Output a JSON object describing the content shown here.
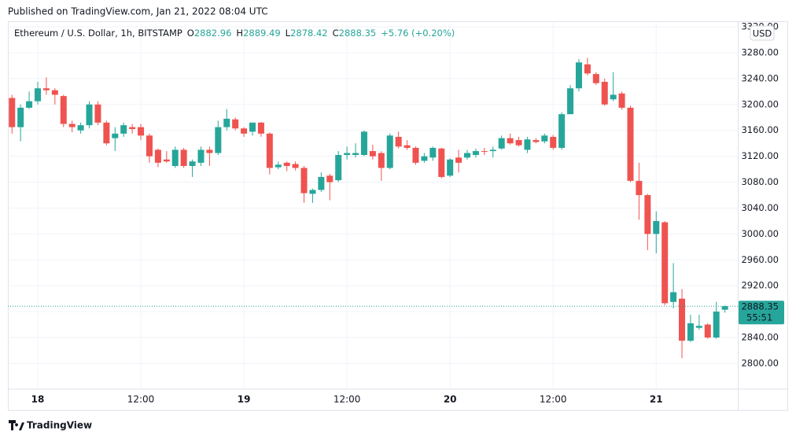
{
  "published": "Published on TradingView.com, Jan 21, 2022 08:04 UTC",
  "brand": "TradingView",
  "chart_data": {
    "type": "candlestick",
    "header": {
      "symbol": "Ethereum / U.S. Dollar, 1h, BITSTAMP",
      "open_label": "O",
      "high_label": "H",
      "low_label": "L",
      "close_label": "C",
      "change": "+5.76 (+0.20%)"
    },
    "currency": "USD",
    "countdown": "55:51",
    "up_color": "#26a69a",
    "down_color": "#ef5350",
    "grid": true,
    "x": [
      -3,
      -2,
      -1,
      0,
      1,
      2,
      3,
      4,
      5,
      6,
      7,
      8,
      9,
      10,
      11,
      12,
      13,
      14,
      15,
      16,
      17,
      18,
      19,
      20,
      21,
      22,
      23,
      24,
      25,
      26,
      27,
      28,
      29,
      30,
      31,
      32,
      33,
      34,
      35,
      36,
      37,
      38,
      39,
      40,
      41,
      42,
      43,
      44,
      45,
      46,
      47,
      48,
      49,
      50,
      51,
      52,
      53,
      54,
      55,
      56,
      57,
      58,
      59,
      60,
      61,
      62,
      63,
      64,
      65,
      66,
      67,
      68,
      69,
      70,
      71,
      72,
      73,
      74,
      75,
      76,
      77,
      78,
      79,
      80
    ],
    "open": [
      3210,
      3165,
      3195,
      3205,
      3225,
      3222,
      3213,
      3170,
      3160,
      3168,
      3200,
      3172,
      3148,
      3155,
      3165,
      3165,
      3152,
      3130,
      3115,
      3105,
      3130,
      3105,
      3110,
      3130,
      3125,
      3165,
      3177,
      3163,
      3158,
      3172,
      3155,
      3103,
      3110,
      3108,
      3102,
      3062,
      3068,
      3090,
      3083,
      3122,
      3122,
      3122,
      3128,
      3125,
      3102,
      3150,
      3137,
      3133,
      3113,
      3118,
      3132,
      3090,
      3118,
      3118,
      3122,
      3128,
      3128,
      3132,
      3148,
      3145,
      3130,
      3145,
      3143,
      3150,
      3133,
      3185,
      3225,
      3262,
      3247,
      3235,
      3208,
      3217,
      3195,
      3082,
      3060,
      3000,
      3018,
      2895,
      2900,
      2835,
      2855,
      2860,
      2840,
      2882.96
    ],
    "high": [
      3215,
      3200,
      3220,
      3235,
      3242,
      3225,
      3215,
      3175,
      3172,
      3205,
      3205,
      3175,
      3165,
      3172,
      3170,
      3170,
      3155,
      3132,
      3128,
      3135,
      3133,
      3115,
      3135,
      3135,
      3175,
      3193,
      3180,
      3165,
      3172,
      3173,
      3157,
      3112,
      3112,
      3112,
      3105,
      3070,
      3095,
      3093,
      3128,
      3135,
      3140,
      3160,
      3138,
      3128,
      3155,
      3158,
      3145,
      3135,
      3125,
      3135,
      3133,
      3117,
      3130,
      3130,
      3132,
      3133,
      3135,
      3152,
      3155,
      3150,
      3150,
      3148,
      3155,
      3153,
      3188,
      3230,
      3270,
      3272,
      3250,
      3240,
      3250,
      3220,
      3198,
      3110,
      3062,
      3035,
      3020,
      2955,
      2915,
      2875,
      2875,
      2862,
      2895,
      2889.49
    ],
    "low": [
      3155,
      3143,
      3193,
      3200,
      3215,
      3200,
      3165,
      3157,
      3155,
      3163,
      3168,
      3137,
      3128,
      3150,
      3155,
      3145,
      3110,
      3103,
      3110,
      3102,
      3102,
      3088,
      3105,
      3105,
      3122,
      3160,
      3160,
      3150,
      3152,
      3150,
      3092,
      3100,
      3097,
      3098,
      3048,
      3048,
      3065,
      3052,
      3080,
      3115,
      3118,
      3120,
      3115,
      3082,
      3100,
      3132,
      3130,
      3107,
      3110,
      3113,
      3086,
      3088,
      3095,
      3115,
      3118,
      3122,
      3118,
      3130,
      3138,
      3135,
      3125,
      3140,
      3140,
      3130,
      3130,
      3185,
      3220,
      3245,
      3230,
      3198,
      3205,
      3192,
      3080,
      3022,
      2975,
      2970,
      2890,
      2885,
      2808,
      2833,
      2852,
      2838,
      2838,
      2878.42
    ],
    "close": [
      3165,
      3195,
      3205,
      3225,
      3222,
      3215,
      3170,
      3165,
      3168,
      3200,
      3172,
      3140,
      3155,
      3168,
      3162,
      3152,
      3120,
      3110,
      3112,
      3130,
      3105,
      3112,
      3130,
      3125,
      3165,
      3178,
      3163,
      3155,
      3172,
      3155,
      3102,
      3107,
      3105,
      3102,
      3063,
      3068,
      3088,
      3080,
      3122,
      3125,
      3125,
      3158,
      3120,
      3102,
      3152,
      3135,
      3133,
      3110,
      3120,
      3133,
      3088,
      3115,
      3110,
      3125,
      3128,
      3127,
      3130,
      3148,
      3140,
      3137,
      3146,
      3142,
      3152,
      3133,
      3185,
      3225,
      3265,
      3248,
      3233,
      3200,
      3215,
      3195,
      3082,
      3060,
      3000,
      3020,
      2893,
      2910,
      2835,
      2862,
      2858,
      2840,
      2880,
      2888.35
    ],
    "xlim": [
      -3.48,
      81.5
    ],
    "xticks": [
      {
        "value": 0,
        "label": "18"
      },
      {
        "value": 12,
        "label": "12:00"
      },
      {
        "value": 24,
        "label": "19"
      },
      {
        "value": 36,
        "label": "12:00"
      },
      {
        "value": 48,
        "label": "20"
      },
      {
        "value": 60,
        "label": "12:00"
      },
      {
        "value": 72,
        "label": "21"
      }
    ],
    "ylim": [
      2761,
      3328.6
    ],
    "yticks": [
      {
        "value": 2800,
        "label": "2800.00"
      },
      {
        "value": 2840,
        "label": "2840.00"
      },
      {
        "value": 2880,
        "label": "2880.00"
      },
      {
        "value": 2920,
        "label": "2920.00"
      },
      {
        "value": 2960,
        "label": "2960.00"
      },
      {
        "value": 3000,
        "label": "3000.00"
      },
      {
        "value": 3040,
        "label": "3040.00"
      },
      {
        "value": 3080,
        "label": "3080.00"
      },
      {
        "value": 3120,
        "label": "3120.00"
      },
      {
        "value": 3160,
        "label": "3160.00"
      },
      {
        "value": 3200,
        "label": "3200.00"
      },
      {
        "value": 3240,
        "label": "3240.00"
      },
      {
        "value": 3280,
        "label": "3280.00"
      },
      {
        "value": 3320,
        "label": "3320.00"
      }
    ]
  }
}
